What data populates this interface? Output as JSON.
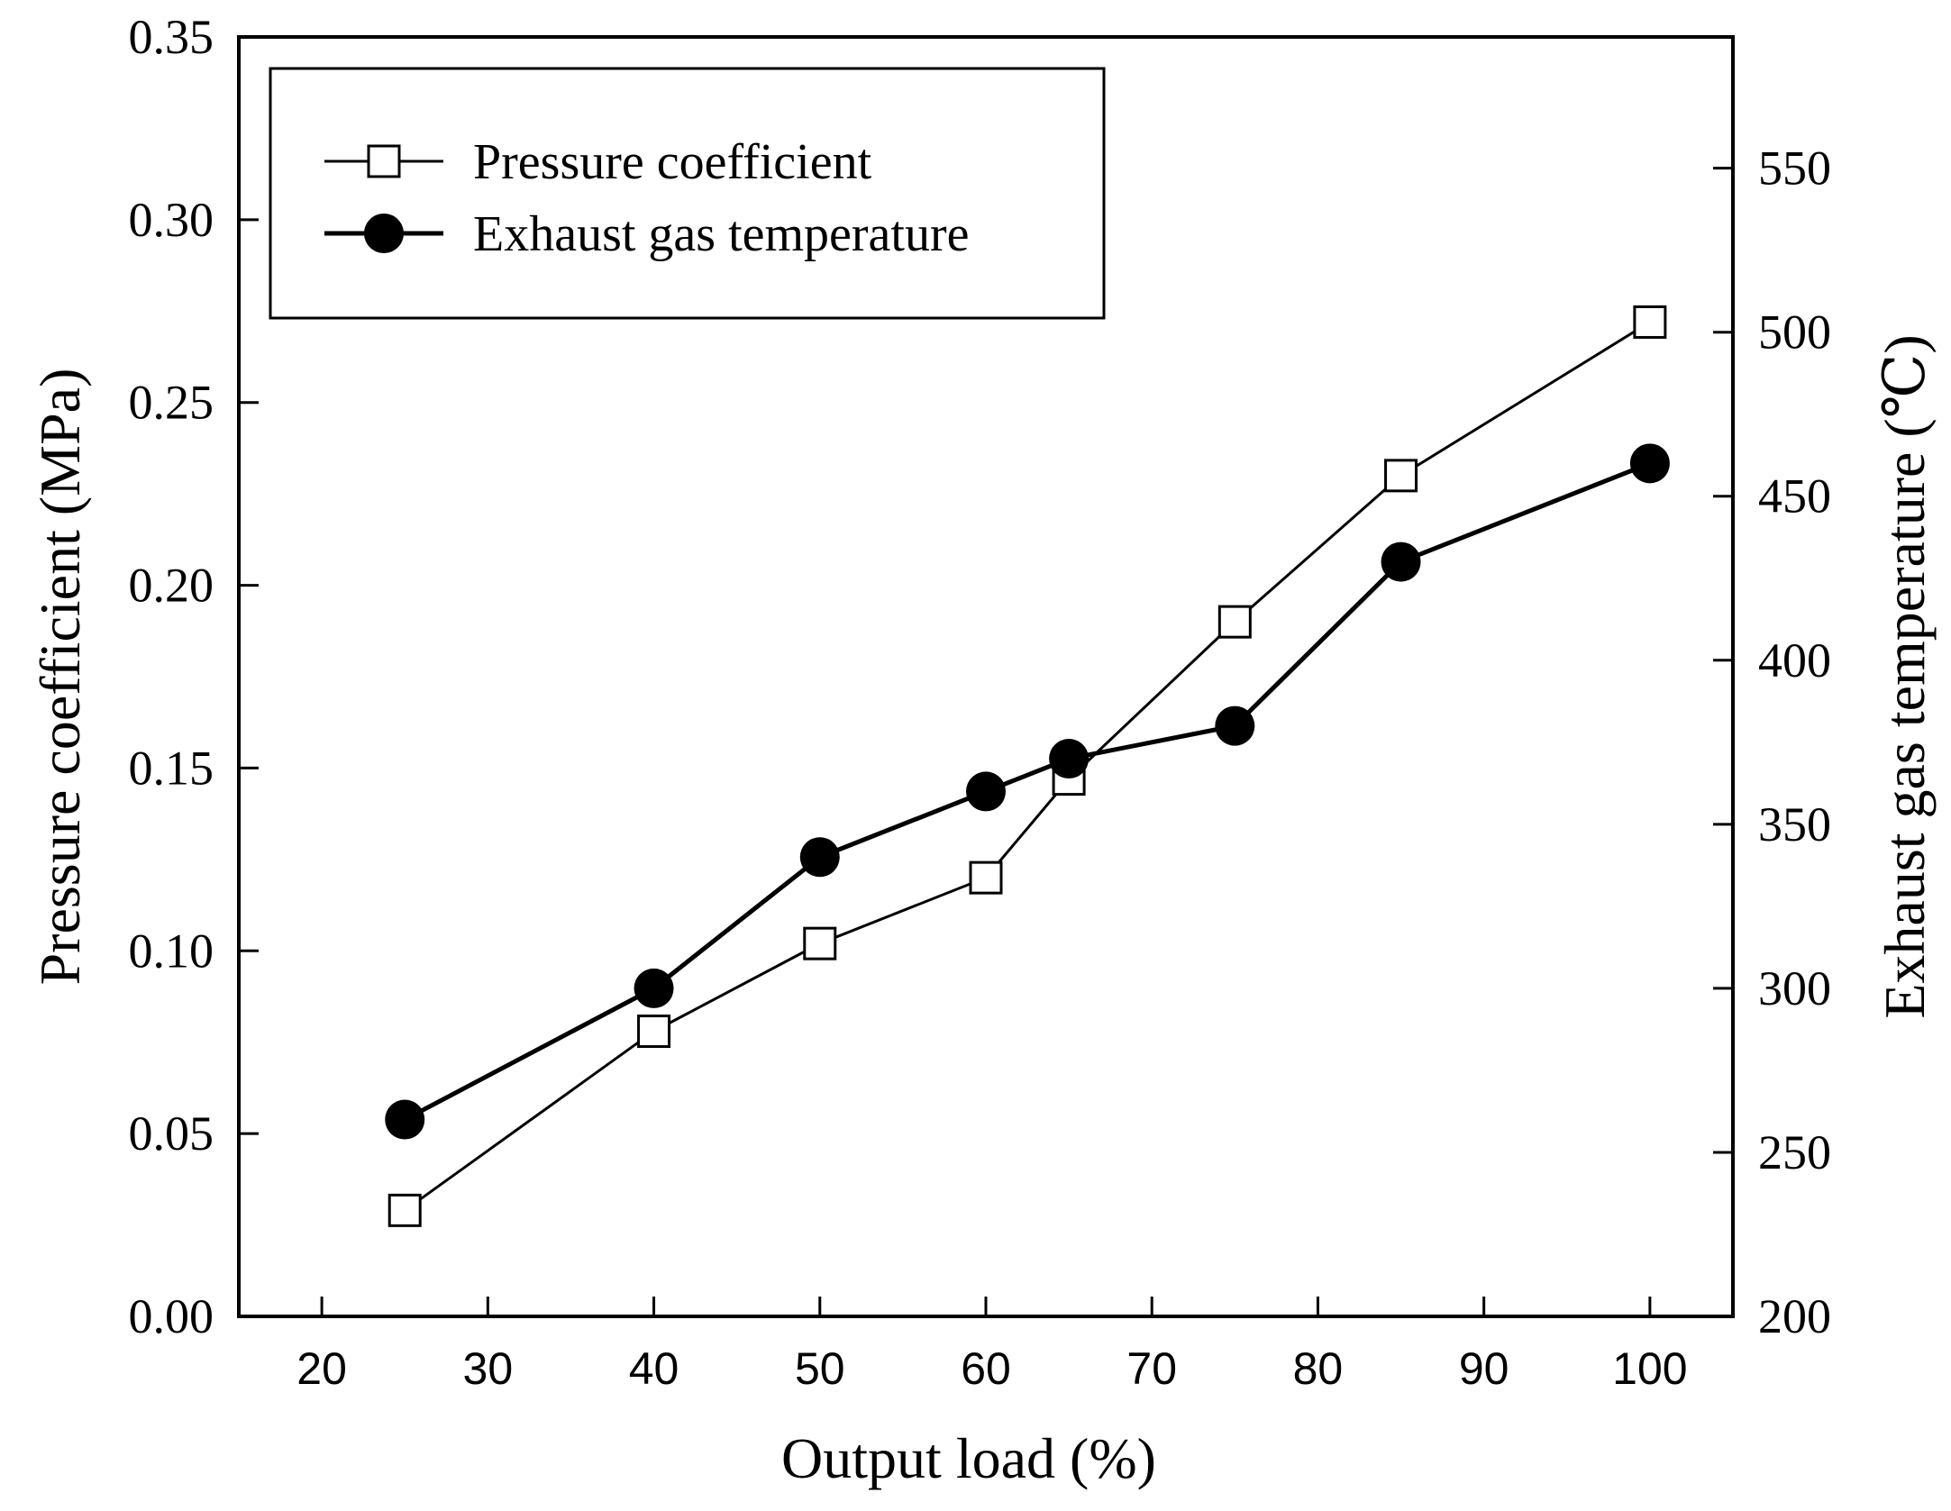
{
  "chart_data": {
    "type": "line",
    "title": "",
    "xlabel": "Output load (%)",
    "ylabel_left": "Pressure coefficient (MPa)",
    "ylabel_right": "Exhaust gas temperature (℃)",
    "xlim": [
      15,
      105
    ],
    "ylim_left": [
      0,
      0.35
    ],
    "ylim_right": [
      200,
      590
    ],
    "x_ticks": [
      20,
      30,
      40,
      50,
      60,
      70,
      80,
      90,
      100
    ],
    "x_tick_labels": [
      "20",
      "30",
      "40",
      "50",
      "60",
      "70",
      "80",
      "90",
      "100"
    ],
    "y_left_ticks": [
      0,
      0.05,
      0.1,
      0.15,
      0.2,
      0.25,
      0.3,
      0.35
    ],
    "y_left_tick_labels": [
      "0.00",
      "0.05",
      "0.10",
      "0.15",
      "0.20",
      "0.25",
      "0.30",
      "0.35"
    ],
    "y_right_ticks": [
      200,
      250,
      300,
      350,
      400,
      450,
      500,
      550
    ],
    "y_right_tick_labels": [
      "200",
      "250",
      "300",
      "350",
      "400",
      "450",
      "500",
      "550"
    ],
    "grid": false,
    "legend_position": "top-left",
    "series": [
      {
        "name": "Pressure coefficient",
        "axis": "left",
        "marker": "open-square",
        "x": [
          25,
          40,
          50,
          60,
          65,
          75,
          85,
          100
        ],
        "values": [
          0.029,
          0.078,
          0.102,
          0.12,
          0.147,
          0.19,
          0.23,
          0.272
        ]
      },
      {
        "name": "Exhaust gas temperature",
        "axis": "right",
        "marker": "filled-circle",
        "x": [
          25,
          40,
          50,
          60,
          65,
          75,
          85,
          100
        ],
        "values": [
          260,
          300,
          340,
          360,
          370,
          380,
          430,
          460
        ]
      }
    ]
  }
}
